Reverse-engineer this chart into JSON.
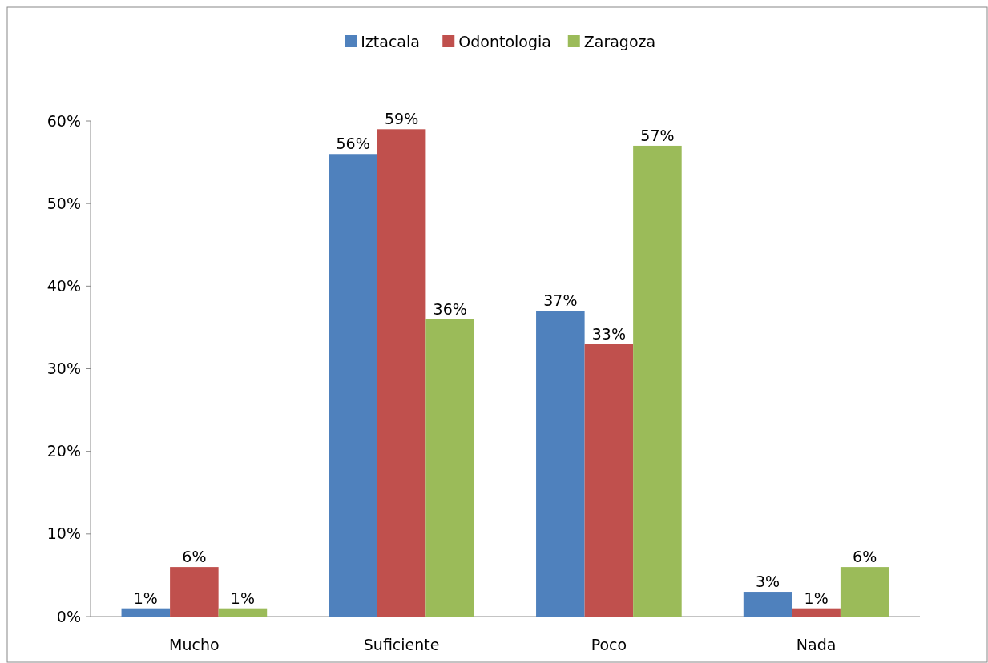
{
  "chart_data": {
    "type": "bar",
    "categories": [
      "Mucho",
      "Suficiente",
      "Poco",
      "Nada"
    ],
    "series": [
      {
        "name": "Iztacala",
        "color": "#4f81bd",
        "values": [
          1,
          56,
          37,
          3
        ],
        "value_labels": [
          "1%",
          "56%",
          "37%",
          "3%"
        ]
      },
      {
        "name": "Odontologia",
        "color": "#c0504d",
        "values": [
          6,
          59,
          33,
          1
        ],
        "value_labels": [
          "6%",
          "59%",
          "33%",
          "1%"
        ]
      },
      {
        "name": "Zaragoza",
        "color": "#9bbb59",
        "values": [
          1,
          36,
          57,
          6
        ],
        "value_labels": [
          "1%",
          "36%",
          "57%",
          "6%"
        ]
      }
    ],
    "ylim": [
      0,
      60
    ],
    "yticks": [
      {
        "value": 0,
        "label": "0%"
      },
      {
        "value": 10,
        "label": "10%"
      },
      {
        "value": 20,
        "label": "20%"
      },
      {
        "value": 30,
        "label": "30%"
      },
      {
        "value": 40,
        "label": "40%"
      },
      {
        "value": 50,
        "label": "50%"
      },
      {
        "value": 60,
        "label": "60%"
      }
    ],
    "legend": "top",
    "grid": false
  }
}
